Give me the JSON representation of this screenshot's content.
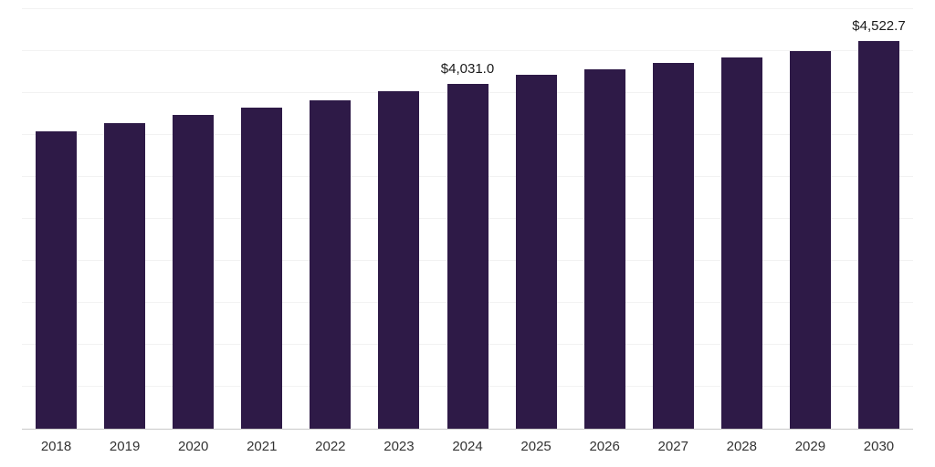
{
  "chart_data": {
    "type": "bar",
    "title": "",
    "xlabel": "",
    "ylabel": "",
    "categories": [
      "2018",
      "2019",
      "2020",
      "2021",
      "2022",
      "2023",
      "2024",
      "2025",
      "2026",
      "2027",
      "2028",
      "2029",
      "2030"
    ],
    "values": [
      3470,
      3565,
      3660,
      3750,
      3835,
      3940,
      4031.0,
      4130,
      4195,
      4270,
      4335,
      4410,
      4522.7
    ],
    "data_labels": [
      "",
      "",
      "",
      "",
      "",
      "",
      "$4,031.0",
      "",
      "",
      "",
      "",
      "",
      "$4,522.7"
    ],
    "ylim": [
      0,
      4900
    ],
    "gridline_step": 490,
    "grid": "horizontal",
    "legend": "none",
    "bar_color": "#2e1a47",
    "gridline_color": "#f2f2f2",
    "axis_line_color": "#c9c9c9",
    "tick_label_color": "#333333",
    "value_label_color": "#1a1a1a"
  }
}
